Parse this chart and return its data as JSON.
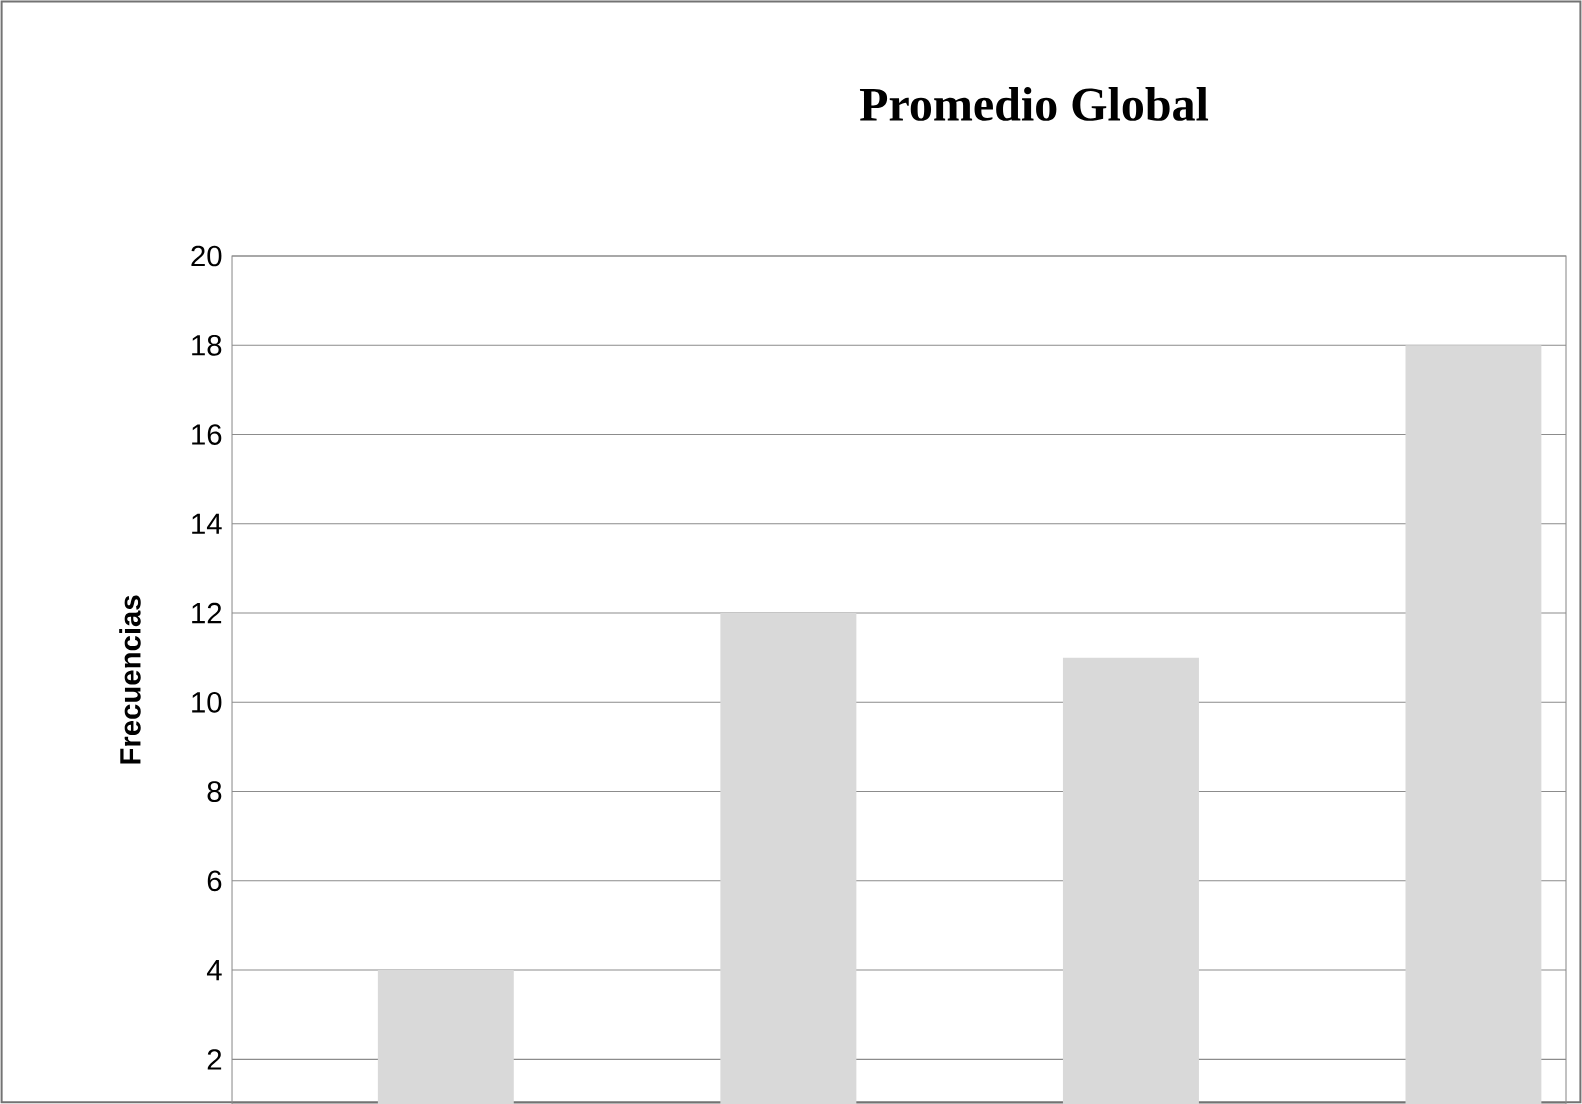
{
  "chart_data": {
    "type": "bar",
    "title": "Promedio Global",
    "ylabel": "Frecuencias",
    "categories": [
      null,
      null,
      null,
      null
    ],
    "values": [
      4,
      12,
      11,
      18
    ],
    "color": "#d9d9d9",
    "ylim": [
      1,
      20
    ],
    "yticks": [
      2,
      4,
      6,
      8,
      10,
      12,
      14,
      16,
      18,
      20
    ],
    "grid": "y",
    "tick_labels": "y"
  }
}
